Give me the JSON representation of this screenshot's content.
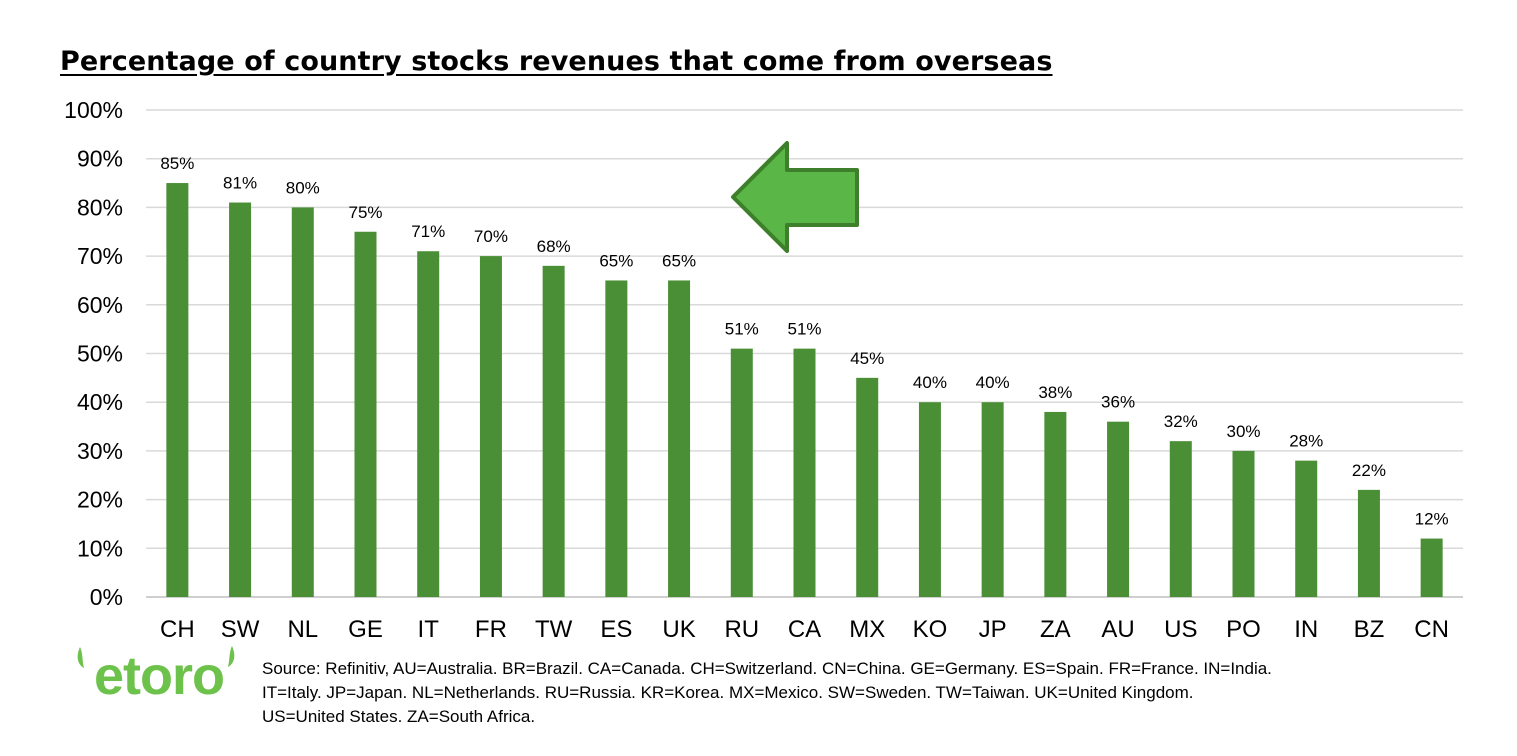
{
  "chart_data": {
    "type": "bar",
    "title": "Percentage of country stocks revenues that come from overseas",
    "categories": [
      "CH",
      "SW",
      "NL",
      "GE",
      "IT",
      "FR",
      "TW",
      "ES",
      "UK",
      "RU",
      "CA",
      "MX",
      "KO",
      "JP",
      "ZA",
      "AU",
      "US",
      "PO",
      "IN",
      "BZ",
      "CN"
    ],
    "values": [
      85,
      81,
      80,
      75,
      71,
      70,
      68,
      65,
      65,
      51,
      51,
      45,
      40,
      40,
      38,
      36,
      32,
      30,
      28,
      22,
      12
    ],
    "value_labels": [
      "85%",
      "81%",
      "80%",
      "75%",
      "71%",
      "70%",
      "68%",
      "65%",
      "65%",
      "51%",
      "51%",
      "45%",
      "40%",
      "40%",
      "38%",
      "36%",
      "32%",
      "30%",
      "28%",
      "22%",
      "12%"
    ],
    "ylim": [
      0,
      100
    ],
    "y_ticks": [
      "0%",
      "10%",
      "20%",
      "30%",
      "40%",
      "50%",
      "60%",
      "70%",
      "80%",
      "90%",
      "100%"
    ],
    "grid": true,
    "bar_color": "#4a8f35",
    "arrow_color": "#5ab646",
    "arrow_stroke": "#3d7f2a",
    "xlabel": "",
    "ylabel": ""
  },
  "logo": {
    "text": "etoro",
    "icon": "etoro-logo",
    "color": "#6dc24b"
  },
  "source_lines": [
    "Source: Refinitiv, AU=Australia. BR=Brazil. CA=Canada. CH=Switzerland. CN=China. GE=Germany. ES=Spain. FR=France. IN=India.",
    "IT=Italy.  JP=Japan. NL=Netherlands. RU=Russia. KR=Korea. MX=Mexico.  SW=Sweden. TW=Taiwan. UK=United Kingdom.",
    "US=United States. ZA=South Africa."
  ]
}
